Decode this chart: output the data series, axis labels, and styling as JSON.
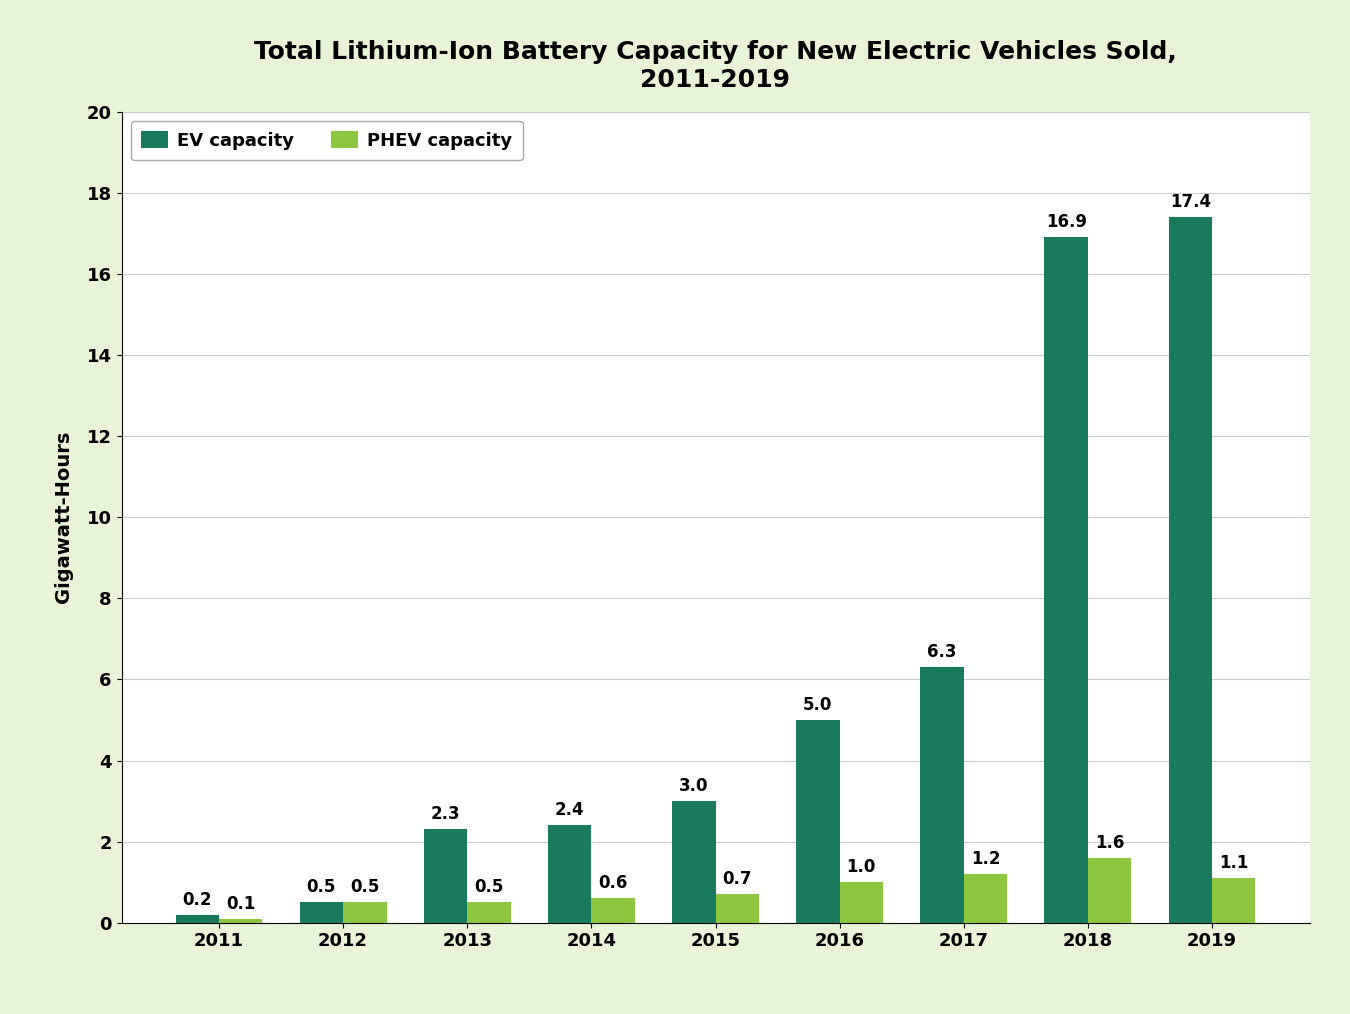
{
  "title": "Total Lithium-Ion Battery Capacity for New Electric Vehicles Sold,\n2011-2019",
  "years": [
    "2011",
    "2012",
    "2013",
    "2014",
    "2015",
    "2016",
    "2017",
    "2018",
    "2019"
  ],
  "ev_values": [
    0.2,
    0.5,
    2.3,
    2.4,
    3.0,
    5.0,
    6.3,
    16.9,
    17.4
  ],
  "phev_values": [
    0.1,
    0.5,
    0.5,
    0.6,
    0.7,
    1.0,
    1.2,
    1.6,
    1.1
  ],
  "ev_color": "#1a7a5e",
  "phev_color": "#8dc63f",
  "ylabel": "Gigawatt-Hours",
  "ylim": [
    0,
    20
  ],
  "yticks": [
    0,
    2,
    4,
    6,
    8,
    10,
    12,
    14,
    16,
    18,
    20
  ],
  "background_color": "#e8f4d8",
  "plot_background": "#ffffff",
  "legend_labels": [
    "EV capacity",
    "PHEV capacity"
  ],
  "bar_width": 0.35,
  "title_fontsize": 18,
  "axis_label_fontsize": 14,
  "tick_fontsize": 13,
  "annotation_fontsize": 12,
  "legend_fontsize": 13
}
